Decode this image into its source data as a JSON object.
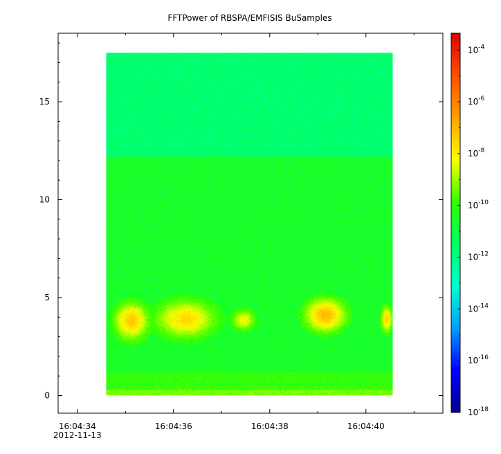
{
  "chart_data": {
    "type": "heatmap",
    "title": "FFTPower of RBSPA/EMFISIS  BuSamples",
    "xlabel": "",
    "ylabel": "",
    "x_ticks": [
      {
        "value": 34,
        "label": "16:04:34",
        "sublabel": "2012-11-13"
      },
      {
        "value": 36,
        "label": "16:04:36"
      },
      {
        "value": 38,
        "label": "16:04:38"
      },
      {
        "value": 40,
        "label": "16:04:40"
      }
    ],
    "x_minor_ticks": [
      35,
      37,
      39,
      41
    ],
    "xlim": [
      33.6,
      41.6
    ],
    "ylim": [
      -0.9,
      18.5
    ],
    "y_ticks": [
      0,
      5,
      10,
      15
    ],
    "data_extent": {
      "x": [
        34.6,
        40.55
      ],
      "y": [
        0,
        17.5
      ]
    },
    "color_scale": "log",
    "colorbar": {
      "min_exp": -18,
      "max_exp": -3.35,
      "ticks": [
        {
          "base": "10",
          "exp": "-4"
        },
        {
          "base": "10",
          "exp": "-6"
        },
        {
          "base": "10",
          "exp": "-8"
        },
        {
          "base": "10",
          "exp": "-10"
        },
        {
          "base": "10",
          "exp": "-12"
        },
        {
          "base": "10",
          "exp": "-14"
        },
        {
          "base": "10",
          "exp": "-16"
        },
        {
          "base": "10",
          "exp": "-18"
        }
      ],
      "colors": [
        "#000090",
        "#0000ff",
        "#00a0ff",
        "#00ffd0",
        "#00ff60",
        "#30ff00",
        "#ffff00",
        "#ffa000",
        "#ff5000",
        "#e00000"
      ]
    },
    "background_levels": [
      {
        "y_range": [
          0,
          0.3
        ],
        "log_power": -9.3
      },
      {
        "y_range": [
          0.3,
          1.2
        ],
        "log_power": -10.0
      },
      {
        "y_range": [
          1.2,
          12.2
        ],
        "log_power": -10.6
      },
      {
        "y_range": [
          12.2,
          17.5
        ],
        "log_power": -11.7
      }
    ],
    "wave_bursts": [
      {
        "x": [
          34.75,
          35.5
        ],
        "y": [
          2.8,
          4.8
        ],
        "peak_log_power": -7.3
      },
      {
        "x": [
          35.6,
          36.9
        ],
        "y": [
          2.9,
          4.9
        ],
        "peak_log_power": -7.6
      },
      {
        "x": [
          37.2,
          37.7
        ],
        "y": [
          3.3,
          4.4
        ],
        "peak_log_power": -8.2
      },
      {
        "x": [
          38.7,
          39.6
        ],
        "y": [
          3.2,
          5.0
        ],
        "peak_log_power": -7.0
      },
      {
        "x": [
          40.3,
          40.55
        ],
        "y": [
          3.2,
          4.6
        ],
        "peak_log_power": -7.5
      }
    ]
  }
}
